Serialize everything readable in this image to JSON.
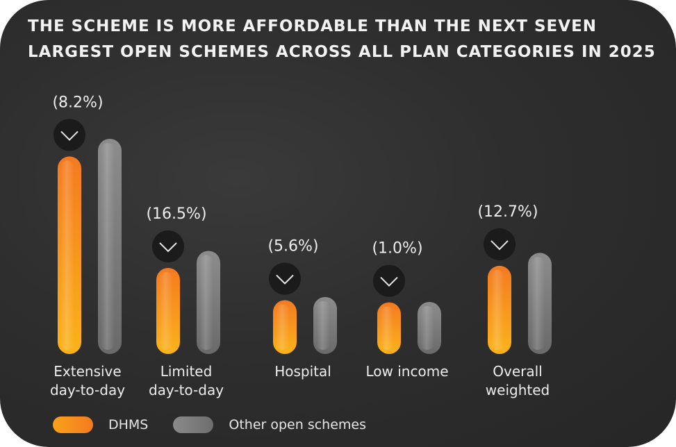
{
  "title": "THE SCHEME IS MORE AFFORDABLE THAN THE NEXT SEVEN LARGEST OPEN SCHEMES ACROSS ALL PLAN CATEGORIES IN 2025",
  "chart_data": {
    "type": "bar",
    "title": "THE SCHEME IS MORE AFFORDABLE THAN THE NEXT SEVEN LARGEST OPEN SCHEMES ACROSS ALL PLAN CATEGORIES IN 2025",
    "xlabel": "",
    "ylabel": "",
    "ylim": [
      0,
      100
    ],
    "categories": [
      [
        "Extensive",
        "day-to-day"
      ],
      [
        "Limited",
        "day-to-day"
      ],
      [
        "Hospital"
      ],
      [
        "Low income"
      ],
      [
        "Overall",
        "weighted"
      ]
    ],
    "series": [
      {
        "name": "DHMS",
        "values": [
          91.8,
          40.0,
          25.0,
          24.0,
          41.0
        ]
      },
      {
        "name": "Other open schemes",
        "values": [
          100,
          47.9,
          26.5,
          24.2,
          47.0
        ]
      }
    ],
    "annotations": [
      "(8.2%)",
      "(16.5%)",
      "(5.6%)",
      "(1.0%)",
      "(12.7%)"
    ],
    "annotation_icon": "chevron-down-icon"
  },
  "legend": [
    {
      "label": "DHMS",
      "color": "#f58a1f"
    },
    {
      "label": "Other open schemes",
      "color": "#7a7a7a"
    }
  ],
  "colors": {
    "dhms_top": "#f47a20",
    "dhms_bottom": "#fbb31a",
    "other_top": "#8c8c8c",
    "other_bottom": "#6a6a6a"
  }
}
